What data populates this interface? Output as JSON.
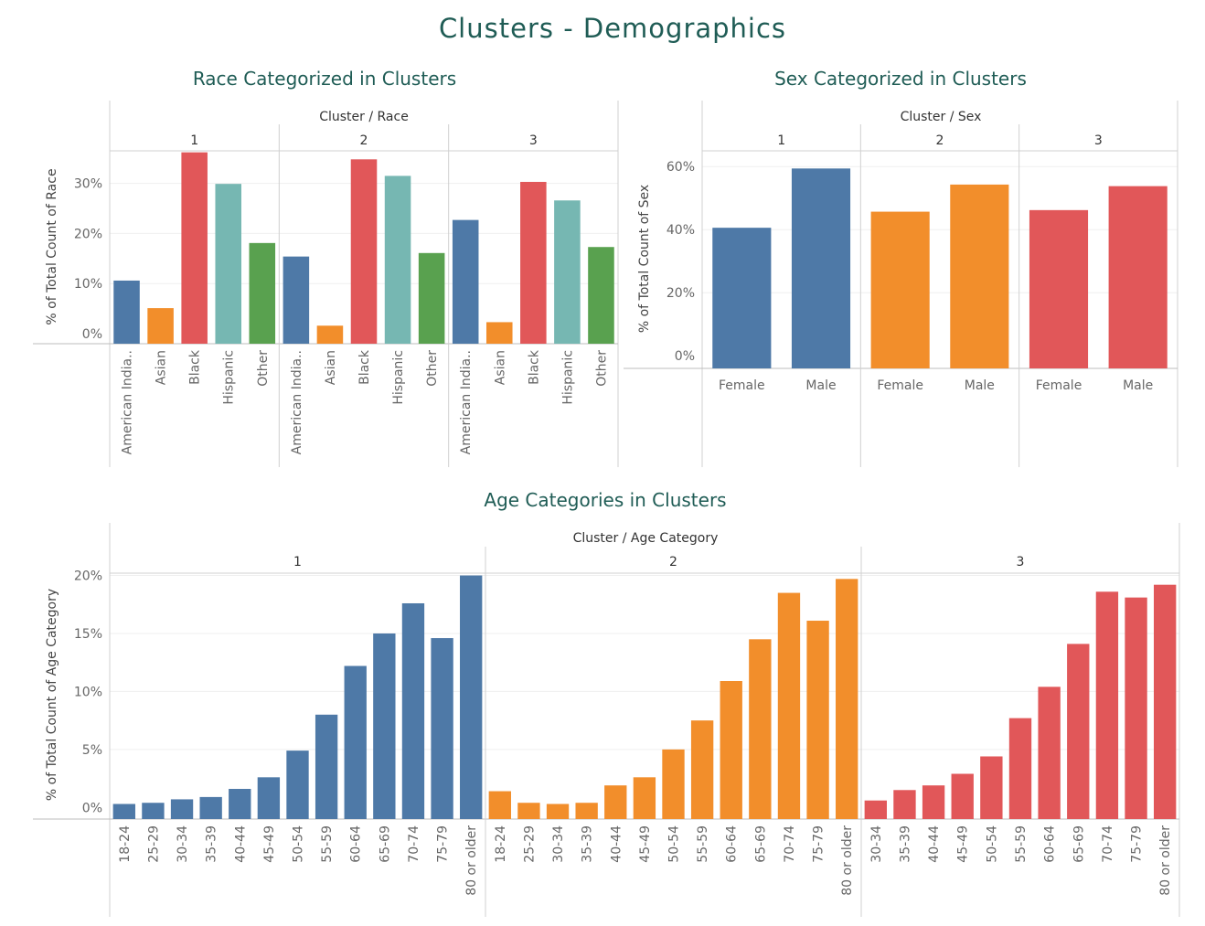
{
  "dashboard": {
    "title": "Clusters - Demographics"
  },
  "colors": {
    "blue": "#4e79a7",
    "orange": "#f28e2b",
    "red": "#e15759",
    "teal": "#76b7b2",
    "green": "#59a14f",
    "title": "#1f5c55"
  },
  "chart_data": [
    {
      "id": "race",
      "type": "bar",
      "title": "Race Categorized in Clusters",
      "column_header": "Cluster / Race",
      "ylabel": "% of Total Count of Race",
      "y_ticks": [
        "0%",
        "10%",
        "20%",
        "30%"
      ],
      "y_tick_values": [
        0,
        10,
        20,
        30
      ],
      "ylim": [
        -2,
        36.5
      ],
      "panels": [
        "1",
        "2",
        "3"
      ],
      "categories": [
        "American India..",
        "Asian",
        "Black",
        "Hispanic",
        "Other"
      ],
      "category_colors": [
        "#4e79a7",
        "#f28e2b",
        "#e15759",
        "#76b7b2",
        "#59a14f"
      ],
      "values": [
        [
          10.6,
          5.1,
          36.2,
          29.9,
          18.1
        ],
        [
          15.4,
          1.6,
          34.8,
          31.5,
          16.1
        ],
        [
          22.7,
          2.3,
          30.3,
          26.6,
          17.3
        ]
      ],
      "gridlines": true
    },
    {
      "id": "sex",
      "type": "bar",
      "title": "Sex Categorized in Clusters",
      "column_header": "Cluster / Sex",
      "ylabel": "% of Total Count of Sex",
      "y_ticks": [
        "0%",
        "20%",
        "40%",
        "60%"
      ],
      "y_tick_values": [
        0,
        20,
        40,
        60
      ],
      "ylim": [
        -4,
        65
      ],
      "panels": [
        "1",
        "2",
        "3"
      ],
      "categories": [
        "Female",
        "Male"
      ],
      "panel_colors": [
        "#4e79a7",
        "#f28e2b",
        "#e15759"
      ],
      "values": [
        [
          40.6,
          59.4
        ],
        [
          45.7,
          54.3
        ],
        [
          46.2,
          53.8
        ]
      ],
      "gridlines": true
    },
    {
      "id": "age",
      "type": "bar",
      "title": "Age Categories in Clusters",
      "column_header": "Cluster / Age Category",
      "ylabel": "% of Total Count of Age Category",
      "y_ticks": [
        "0%",
        "5%",
        "10%",
        "15%",
        "20%"
      ],
      "y_tick_values": [
        0,
        5,
        10,
        15,
        20
      ],
      "ylim": [
        -1,
        20.2
      ],
      "panels": [
        "1",
        "2",
        "3"
      ],
      "panel_colors": [
        "#4e79a7",
        "#f28e2b",
        "#e15759"
      ],
      "categories": [
        [
          "18-24",
          "25-29",
          "30-34",
          "35-39",
          "40-44",
          "45-49",
          "50-54",
          "55-59",
          "60-64",
          "65-69",
          "70-74",
          "75-79",
          "80 or older"
        ],
        [
          "18-24",
          "25-29",
          "30-34",
          "35-39",
          "40-44",
          "45-49",
          "50-54",
          "55-59",
          "60-64",
          "65-69",
          "70-74",
          "75-79",
          "80 or older"
        ],
        [
          "30-34",
          "35-39",
          "40-44",
          "45-49",
          "50-54",
          "55-59",
          "60-64",
          "65-69",
          "70-74",
          "75-79",
          "80 or older"
        ]
      ],
      "values": [
        [
          0.3,
          0.4,
          0.7,
          0.9,
          1.6,
          2.6,
          4.9,
          8.0,
          12.2,
          15.0,
          17.6,
          14.6,
          20.0
        ],
        [
          1.4,
          0.4,
          0.3,
          0.4,
          1.9,
          2.6,
          5.0,
          7.5,
          10.9,
          14.5,
          18.5,
          16.1,
          19.7
        ],
        [
          0.6,
          1.5,
          1.9,
          2.9,
          4.4,
          7.7,
          10.4,
          14.1,
          18.6,
          18.1,
          19.2
        ]
      ],
      "gridlines": true
    }
  ]
}
